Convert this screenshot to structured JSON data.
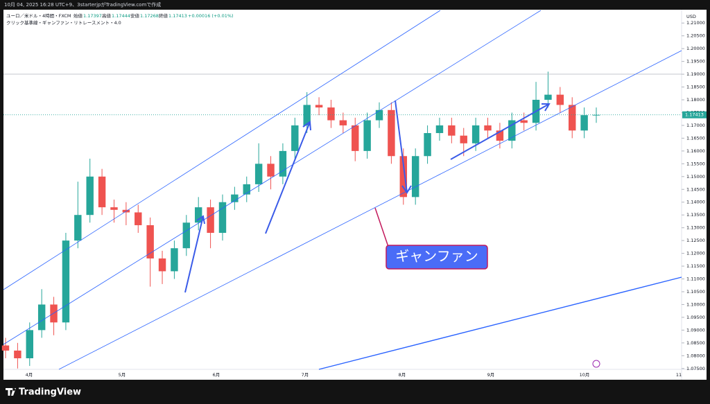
{
  "caption": "10月 04, 2025 16:28 UTC+9、3starterjpがTradingView.comで作成",
  "legend": {
    "symbol": "ユーロ／米ドル・4時間・FXCM",
    "open_label": "始値",
    "open": 1.17397,
    "high_label": "高値",
    "high": 1.17444,
    "low_label": "安値",
    "low": 1.17268,
    "close_label": "終値",
    "close": 1.17413,
    "change": "+0.00016 (+0.01%)",
    "indicators": "クリック基準線・ギャンファン・リトレースメント・4.0"
  },
  "currency": "USD",
  "annotation": "ギャンファン",
  "logo": "TradingView",
  "chart_data": {
    "type": "candlestick",
    "categories": [
      "4月",
      "5月",
      "6月",
      "7月",
      "8月",
      "9月",
      "10月",
      "11"
    ],
    "ylim": [
      1.0725,
      1.2125
    ],
    "yticks": [
      {
        "value": 1.075,
        "label": "1.07500"
      },
      {
        "value": 1.08,
        "label": "1.08000"
      },
      {
        "value": 1.085,
        "label": "1.08500"
      },
      {
        "value": 1.09,
        "label": "1.09000"
      },
      {
        "value": 1.095,
        "label": "1.09500"
      },
      {
        "value": 1.1,
        "label": "1.10000"
      },
      {
        "value": 1.105,
        "label": "1.10500"
      },
      {
        "value": 1.11,
        "label": "1.11000"
      },
      {
        "value": 1.115,
        "label": "1.11500"
      },
      {
        "value": 1.12,
        "label": "1.12000"
      },
      {
        "value": 1.125,
        "label": "1.12500"
      },
      {
        "value": 1.13,
        "label": "1.13000"
      },
      {
        "value": 1.135,
        "label": "1.13500"
      },
      {
        "value": 1.14,
        "label": "1.14000"
      },
      {
        "value": 1.145,
        "label": "1.14500"
      },
      {
        "value": 1.15,
        "label": "1.15000"
      },
      {
        "value": 1.155,
        "label": "1.15500"
      },
      {
        "value": 1.16,
        "label": "1.16000"
      },
      {
        "value": 1.165,
        "label": "1.16500"
      },
      {
        "value": 1.17,
        "label": "1.17000"
      },
      {
        "value": 1.175,
        "label": "1.17500"
      },
      {
        "value": 1.18,
        "label": "1.18000"
      },
      {
        "value": 1.185,
        "label": "1.18500"
      },
      {
        "value": 1.19,
        "label": "1.19000"
      },
      {
        "value": 1.195,
        "label": "1.19500"
      },
      {
        "value": 1.2,
        "label": "1.20000"
      },
      {
        "value": 1.205,
        "label": "1.20500"
      },
      {
        "value": 1.21,
        "label": "1.21000"
      }
    ],
    "open": [
      1.084,
      1.082,
      1.079,
      1.09,
      1.1,
      1.093,
      1.125,
      1.135,
      1.15,
      1.138,
      1.137,
      1.136,
      1.131,
      1.118,
      1.113,
      1.122,
      1.132,
      1.138,
      1.128,
      1.14,
      1.143,
      1.147,
      1.155,
      1.15,
      1.16,
      1.17,
      1.178,
      1.177,
      1.172,
      1.17,
      1.16,
      1.172,
      1.176,
      1.158,
      1.142,
      1.158,
      1.167,
      1.17,
      1.166,
      1.163,
      1.17,
      1.168,
      1.164,
      1.172,
      1.171,
      1.18,
      1.182,
      1.178,
      1.168,
      1.174
    ],
    "high": [
      1.087,
      1.085,
      1.093,
      1.106,
      1.103,
      1.128,
      1.148,
      1.157,
      1.153,
      1.141,
      1.14,
      1.139,
      1.134,
      1.121,
      1.125,
      1.135,
      1.142,
      1.141,
      1.143,
      1.146,
      1.15,
      1.163,
      1.158,
      1.163,
      1.173,
      1.183,
      1.181,
      1.18,
      1.175,
      1.173,
      1.175,
      1.179,
      1.179,
      1.161,
      1.161,
      1.17,
      1.173,
      1.173,
      1.169,
      1.173,
      1.173,
      1.171,
      1.175,
      1.175,
      1.187,
      1.191,
      1.185,
      1.181,
      1.177,
      1.177
    ],
    "low": [
      1.079,
      1.075,
      1.076,
      1.087,
      1.088,
      1.09,
      1.122,
      1.132,
      1.135,
      1.132,
      1.131,
      1.128,
      1.107,
      1.108,
      1.11,
      1.119,
      1.129,
      1.122,
      1.125,
      1.137,
      1.14,
      1.144,
      1.145,
      1.147,
      1.157,
      1.167,
      1.174,
      1.169,
      1.167,
      1.156,
      1.157,
      1.169,
      1.155,
      1.139,
      1.139,
      1.155,
      1.164,
      1.163,
      1.158,
      1.16,
      1.165,
      1.161,
      1.161,
      1.168,
      1.168,
      1.177,
      1.175,
      1.165,
      1.165,
      1.171
    ],
    "close": [
      1.082,
      1.079,
      1.09,
      1.1,
      1.093,
      1.125,
      1.135,
      1.15,
      1.138,
      1.137,
      1.136,
      1.131,
      1.118,
      1.113,
      1.122,
      1.132,
      1.138,
      1.128,
      1.14,
      1.143,
      1.147,
      1.155,
      1.15,
      1.16,
      1.17,
      1.178,
      1.177,
      1.172,
      1.17,
      1.16,
      1.172,
      1.176,
      1.158,
      1.142,
      1.158,
      1.167,
      1.17,
      1.166,
      1.163,
      1.17,
      1.168,
      1.164,
      1.172,
      1.171,
      1.18,
      1.182,
      1.178,
      1.168,
      1.174,
      1.17413
    ],
    "up_color": "#26a69a",
    "down_color": "#ef5350"
  }
}
